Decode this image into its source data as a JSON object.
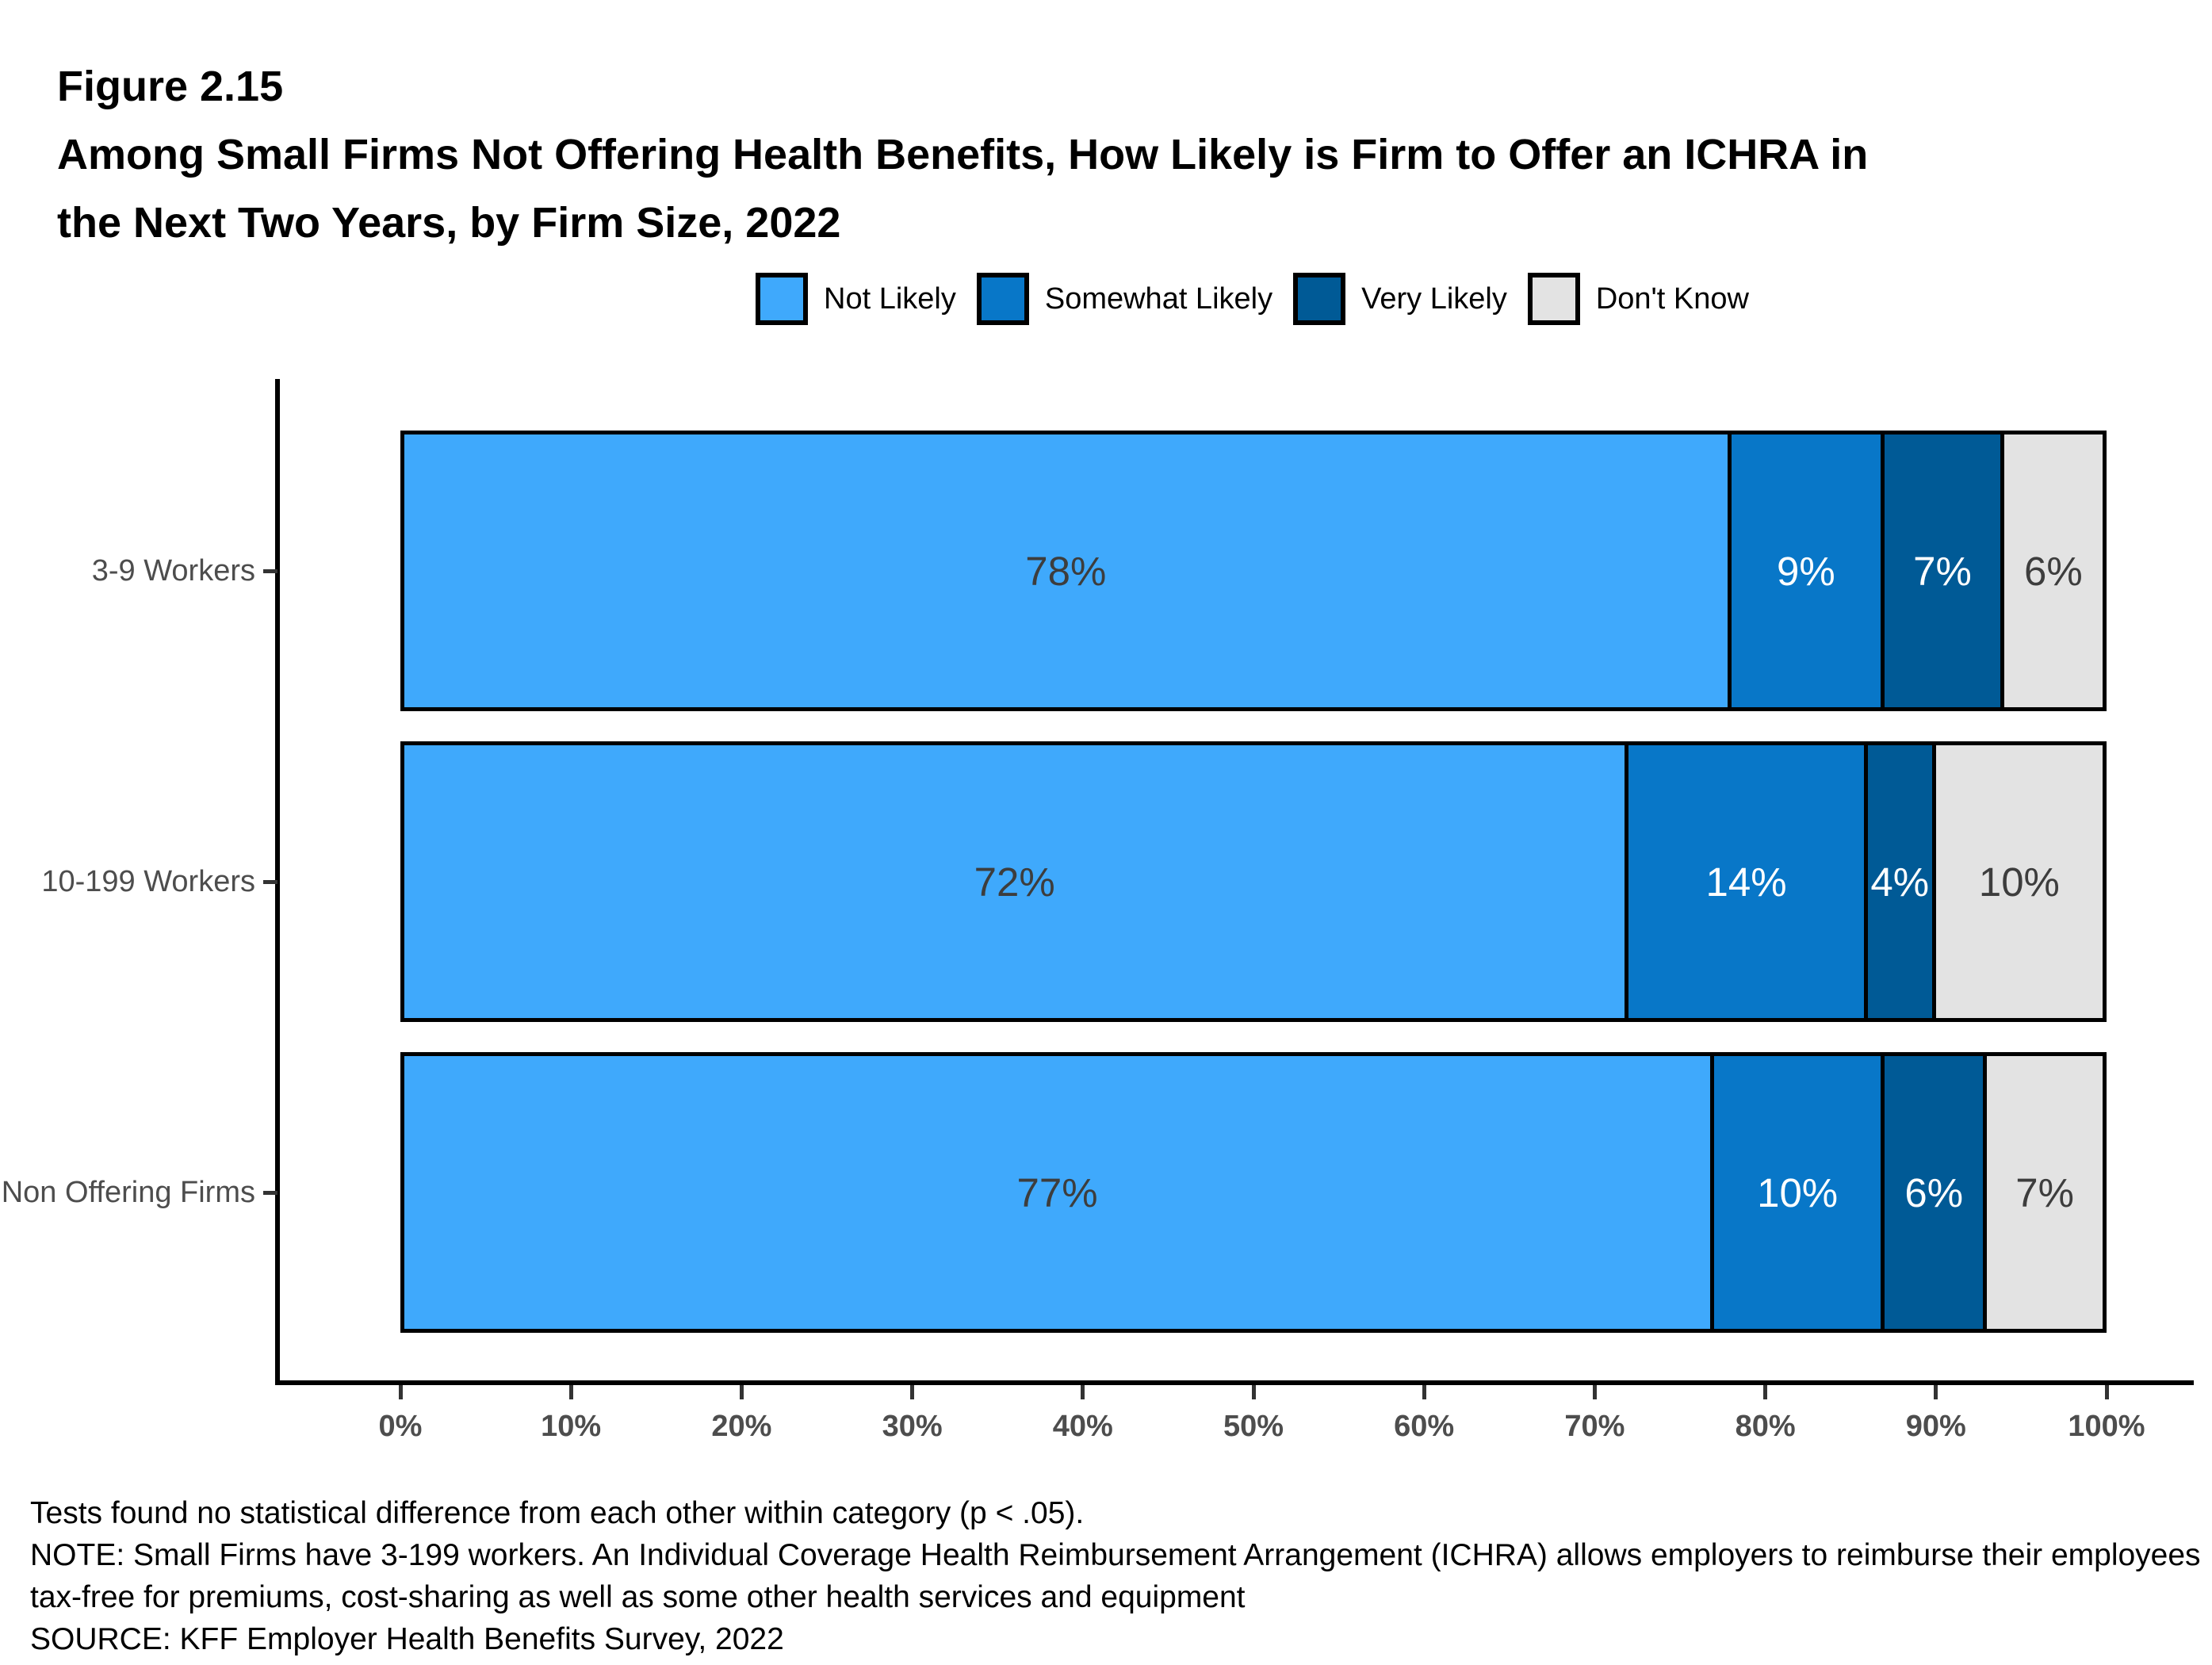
{
  "figure_label": "Figure 2.15",
  "title_lines": [
    "Among Small Firms Not Offering Health Benefits, How Likely is Firm to Offer an ICHRA in",
    "the Next Two Years, by Firm Size, 2022"
  ],
  "legend": {
    "items": [
      {
        "label": "Not Likely",
        "color": "#3FA9FC"
      },
      {
        "label": "Somewhat Likely",
        "color": "#0877C8"
      },
      {
        "label": "Very Likely",
        "color": "#005A96"
      },
      {
        "label": "Don't Know",
        "color": "#E3E3E3"
      }
    ]
  },
  "chart_data": {
    "type": "bar",
    "orientation": "horizontal",
    "stacked": true,
    "unit": "%",
    "title": "Among Small Firms Not Offering Health Benefits, How Likely is Firm to Offer an ICHRA in the Next Two Years, by Firm Size, 2022",
    "categories": [
      "3-9 Workers",
      "10-199 Workers",
      "Non Offering Firms"
    ],
    "series": [
      {
        "name": "Not Likely",
        "color": "#3FA9FC",
        "label_color": "#3D3D3D",
        "values": [
          78,
          72,
          77
        ]
      },
      {
        "name": "Somewhat Likely",
        "color": "#0877C8",
        "label_color": "#FFFFFF",
        "values": [
          9,
          14,
          10
        ]
      },
      {
        "name": "Very Likely",
        "color": "#005A96",
        "label_color": "#FFFFFF",
        "values": [
          7,
          4,
          6
        ]
      },
      {
        "name": "Don't Know",
        "color": "#E3E3E3",
        "label_color": "#3D3D3D",
        "values": [
          6,
          10,
          7
        ]
      }
    ],
    "x_axis": {
      "min": 0,
      "max": 100,
      "ticks": [
        "0%",
        "10%",
        "20%",
        "30%",
        "40%",
        "50%",
        "60%",
        "70%",
        "80%",
        "90%",
        "100%"
      ]
    },
    "legend_position": "top",
    "grid": false
  },
  "footnotes": [
    "Tests found no statistical difference from each other within category (p < .05).",
    "NOTE: Small Firms have 3-199 workers. An Individual Coverage Health Reimbursement Arrangement (ICHRA) allows employers to reimburse their employees",
    "tax-free for premiums, cost-sharing as well as some other health services and equipment",
    "SOURCE: KFF Employer Health Benefits Survey, 2022"
  ]
}
